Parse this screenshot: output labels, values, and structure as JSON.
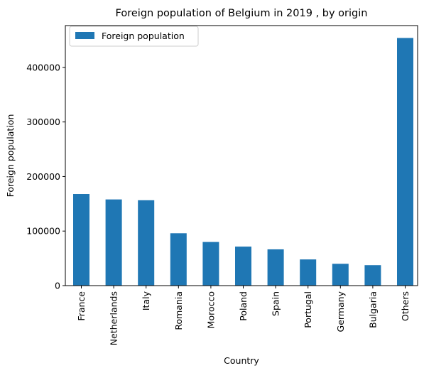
{
  "chart_data": {
    "type": "bar",
    "title": "Foreign population of Belgium in 2019 , by origin",
    "xlabel": "Country",
    "ylabel": "Foreign population",
    "categories": [
      "France",
      "Netherlands",
      "Italy",
      "Romania",
      "Morocco",
      "Poland",
      "Spain",
      "Portugal",
      "Germany",
      "Bulgaria",
      "Others"
    ],
    "series": [
      {
        "name": "Foreign population",
        "color": "#1f77b4",
        "values": [
          168000,
          158000,
          156500,
          96000,
          80000,
          71500,
          66500,
          48000,
          40000,
          37500,
          454000
        ]
      }
    ],
    "ylim": [
      0,
      476700
    ],
    "yticks": [
      0,
      100000,
      200000,
      300000,
      400000
    ],
    "ytick_labels": [
      "0",
      "100000",
      "200000",
      "300000",
      "400000"
    ],
    "legend_location": "upper left",
    "grid": false
  }
}
